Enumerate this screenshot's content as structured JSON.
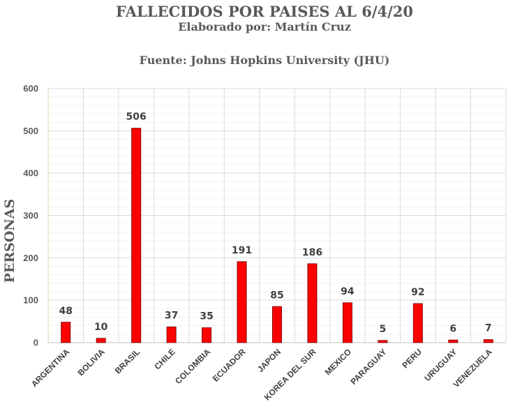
{
  "chart_data": {
    "type": "bar",
    "title": "FALLECIDOS POR PAISES AL 6/4/20",
    "subtitle": "Elaborado por: Martín Cruz",
    "source": "Fuente: Johns Hopkins University (JHU)",
    "xlabel": "",
    "ylabel": "PERSONAS",
    "categories": [
      "ARGENTINA",
      "BOLIVIA",
      "BRASIL",
      "CHILE",
      "COLOMBIA",
      "ECUADOR",
      "JAPON",
      "KOREA DEL SUR",
      "MEXICO",
      "PARAGUAY",
      "PERU",
      "URUGUAY",
      "VENEZUELA"
    ],
    "values": [
      48,
      10,
      506,
      37,
      35,
      191,
      85,
      186,
      94,
      5,
      92,
      6,
      7
    ],
    "ylim": [
      0,
      600
    ],
    "yticks": [
      "0",
      "100",
      "200",
      "300",
      "400",
      "500",
      "600"
    ],
    "grid": true,
    "legend": "none",
    "colors": {
      "bar": "#ff0000",
      "bar_edge": "#8b0000",
      "grid": "#d9d9d9",
      "grid_minor": "#f2f2f2"
    }
  }
}
